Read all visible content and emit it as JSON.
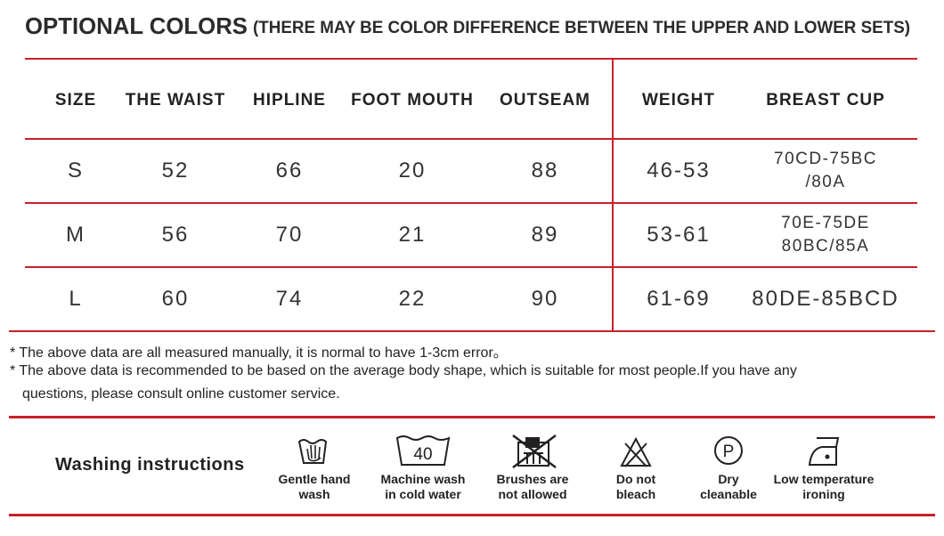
{
  "header": {
    "title": "OPTIONAL COLORS",
    "subtitle": "(THERE MAY BE COLOR DIFFERENCE BETWEEN THE UPPER AND LOWER SETS)"
  },
  "table": {
    "columns": [
      "SIZE",
      "THE WAIST",
      "HIPLINE",
      "FOOT MOUTH",
      "OUTSEAM",
      "WEIGHT",
      "BREAST CUP"
    ],
    "rows": [
      [
        "S",
        "52",
        "66",
        "20",
        "88",
        "46-53",
        [
          "70CD-75BC",
          "/80A"
        ]
      ],
      [
        "M",
        "56",
        "70",
        "21",
        "89",
        "53-61",
        [
          "70E-75DE",
          "80BC/85A"
        ]
      ],
      [
        "L",
        "60",
        "74",
        "22",
        "90",
        "61-69",
        [
          "80DE-85BCD"
        ]
      ]
    ]
  },
  "notes": [
    "* The above data are all measured manually, it is normal to have 1-3cm error。",
    "* The above data is recommended to be based on the average body shape, which is suitable for most people.If you have any",
    "questions, please consult online customer service."
  ],
  "washing": {
    "label": "Washing instructions",
    "items": [
      {
        "label": [
          "Gentle hand",
          "wash"
        ]
      },
      {
        "label": [
          "Machine wash",
          "in cold water"
        ],
        "icon_text": "40"
      },
      {
        "label": [
          "Brushes are",
          "not allowed"
        ]
      },
      {
        "label": [
          "Do not",
          "bleach"
        ]
      },
      {
        "label": [
          "Dry",
          "cleanable"
        ],
        "icon_text": "P"
      },
      {
        "label": [
          "Low temperature",
          "ironing"
        ]
      }
    ]
  }
}
